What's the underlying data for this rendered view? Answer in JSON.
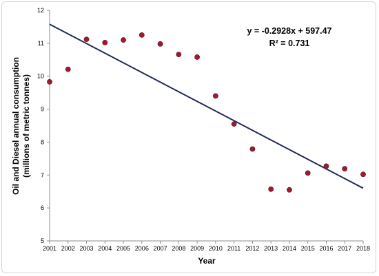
{
  "chart_data": {
    "type": "scatter",
    "xlabel": "Year",
    "ylabel_line1": "Oil and Diesel annual consumption",
    "ylabel_line2": "(millions of metric tonnes)",
    "xlim": [
      2001,
      2018
    ],
    "ylim": [
      5,
      12
    ],
    "x_ticks": [
      "2001",
      "2002",
      "2003",
      "2004",
      "2005",
      "2006",
      "2007",
      "2008",
      "2009",
      "2010",
      "2011",
      "2012",
      "2013",
      "2014",
      "2015",
      "2016",
      "2017",
      "2018"
    ],
    "y_ticks": [
      "5",
      "6",
      "7",
      "8",
      "9",
      "10",
      "11",
      "12"
    ],
    "points": [
      {
        "x": 2001,
        "y": 9.83
      },
      {
        "x": 2002,
        "y": 10.21
      },
      {
        "x": 2003,
        "y": 11.12
      },
      {
        "x": 2004,
        "y": 11.02
      },
      {
        "x": 2005,
        "y": 11.1
      },
      {
        "x": 2006,
        "y": 11.25
      },
      {
        "x": 2007,
        "y": 10.98
      },
      {
        "x": 2008,
        "y": 10.66
      },
      {
        "x": 2009,
        "y": 10.58
      },
      {
        "x": 2010,
        "y": 9.4
      },
      {
        "x": 2011,
        "y": 8.55
      },
      {
        "x": 2012,
        "y": 7.79
      },
      {
        "x": 2013,
        "y": 6.57
      },
      {
        "x": 2014,
        "y": 6.55
      },
      {
        "x": 2015,
        "y": 7.06
      },
      {
        "x": 2016,
        "y": 7.27
      },
      {
        "x": 2017,
        "y": 7.19
      },
      {
        "x": 2018,
        "y": 7.02
      }
    ],
    "trendline": {
      "slope": -0.2928,
      "intercept": 597.47,
      "equation": "y = -0.2928x + 597.47",
      "r_squared": "R² = 0.731",
      "color": "#1f2a5a"
    },
    "marker_color": "#9b1b30",
    "grid": false,
    "legend": "none"
  }
}
